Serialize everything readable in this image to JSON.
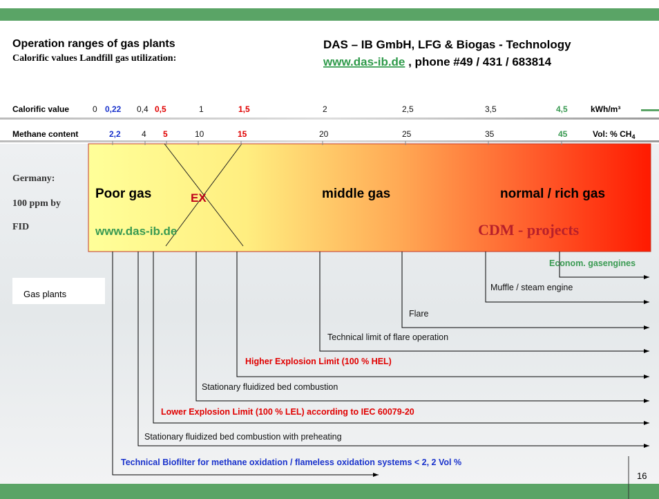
{
  "header": {
    "title": "Operation ranges of gas plants",
    "subtitle": "Calorific values Landfill gas utilization:",
    "company": "DAS – IB GmbH, LFG & Biogas - Technology",
    "url": "www.das-ib.de",
    "phone": " , phone #49 / 431 / 683814"
  },
  "scale": {
    "calorific": {
      "label": "Calorific value",
      "values": [
        "0",
        "0,22",
        "0,4",
        "0,5",
        "1",
        "1,5",
        "2",
        "2,5",
        "3,5",
        "4,5"
      ],
      "unit": "kWh/m³"
    },
    "methane": {
      "label": "Methane content",
      "values": [
        "2,2",
        "4",
        "5",
        "10",
        "15",
        "20",
        "25",
        "35",
        "45"
      ],
      "unit": "Vol: % CH",
      "unit_sub": "4"
    }
  },
  "note": {
    "lines": [
      "Germany:",
      "100 ppm by",
      "FID"
    ]
  },
  "zones": {
    "poor": "Poor gas",
    "ex": "EX",
    "middle": "middle gas",
    "rich": "normal / rich gas",
    "url": "www.das-ib.de",
    "cdm": "CDM - projects"
  },
  "plants": {
    "title": "Gas plants",
    "items": [
      "Econom. gasengines",
      "Muffle / steam engine",
      "Flare",
      "Technical limit of flare operation",
      "Higher Explosion Limit (100 % HEL)",
      "Stationary fluidized bed combustion",
      "Lower Explosion Limit (100 % LEL) according to IEC 60079-20",
      "Stationary fluidized bed combustion with preheating",
      "Technical Biofilter for methane oxidation / flameless oxidation systems < 2, 2 Vol %"
    ]
  },
  "page_number": "16"
}
